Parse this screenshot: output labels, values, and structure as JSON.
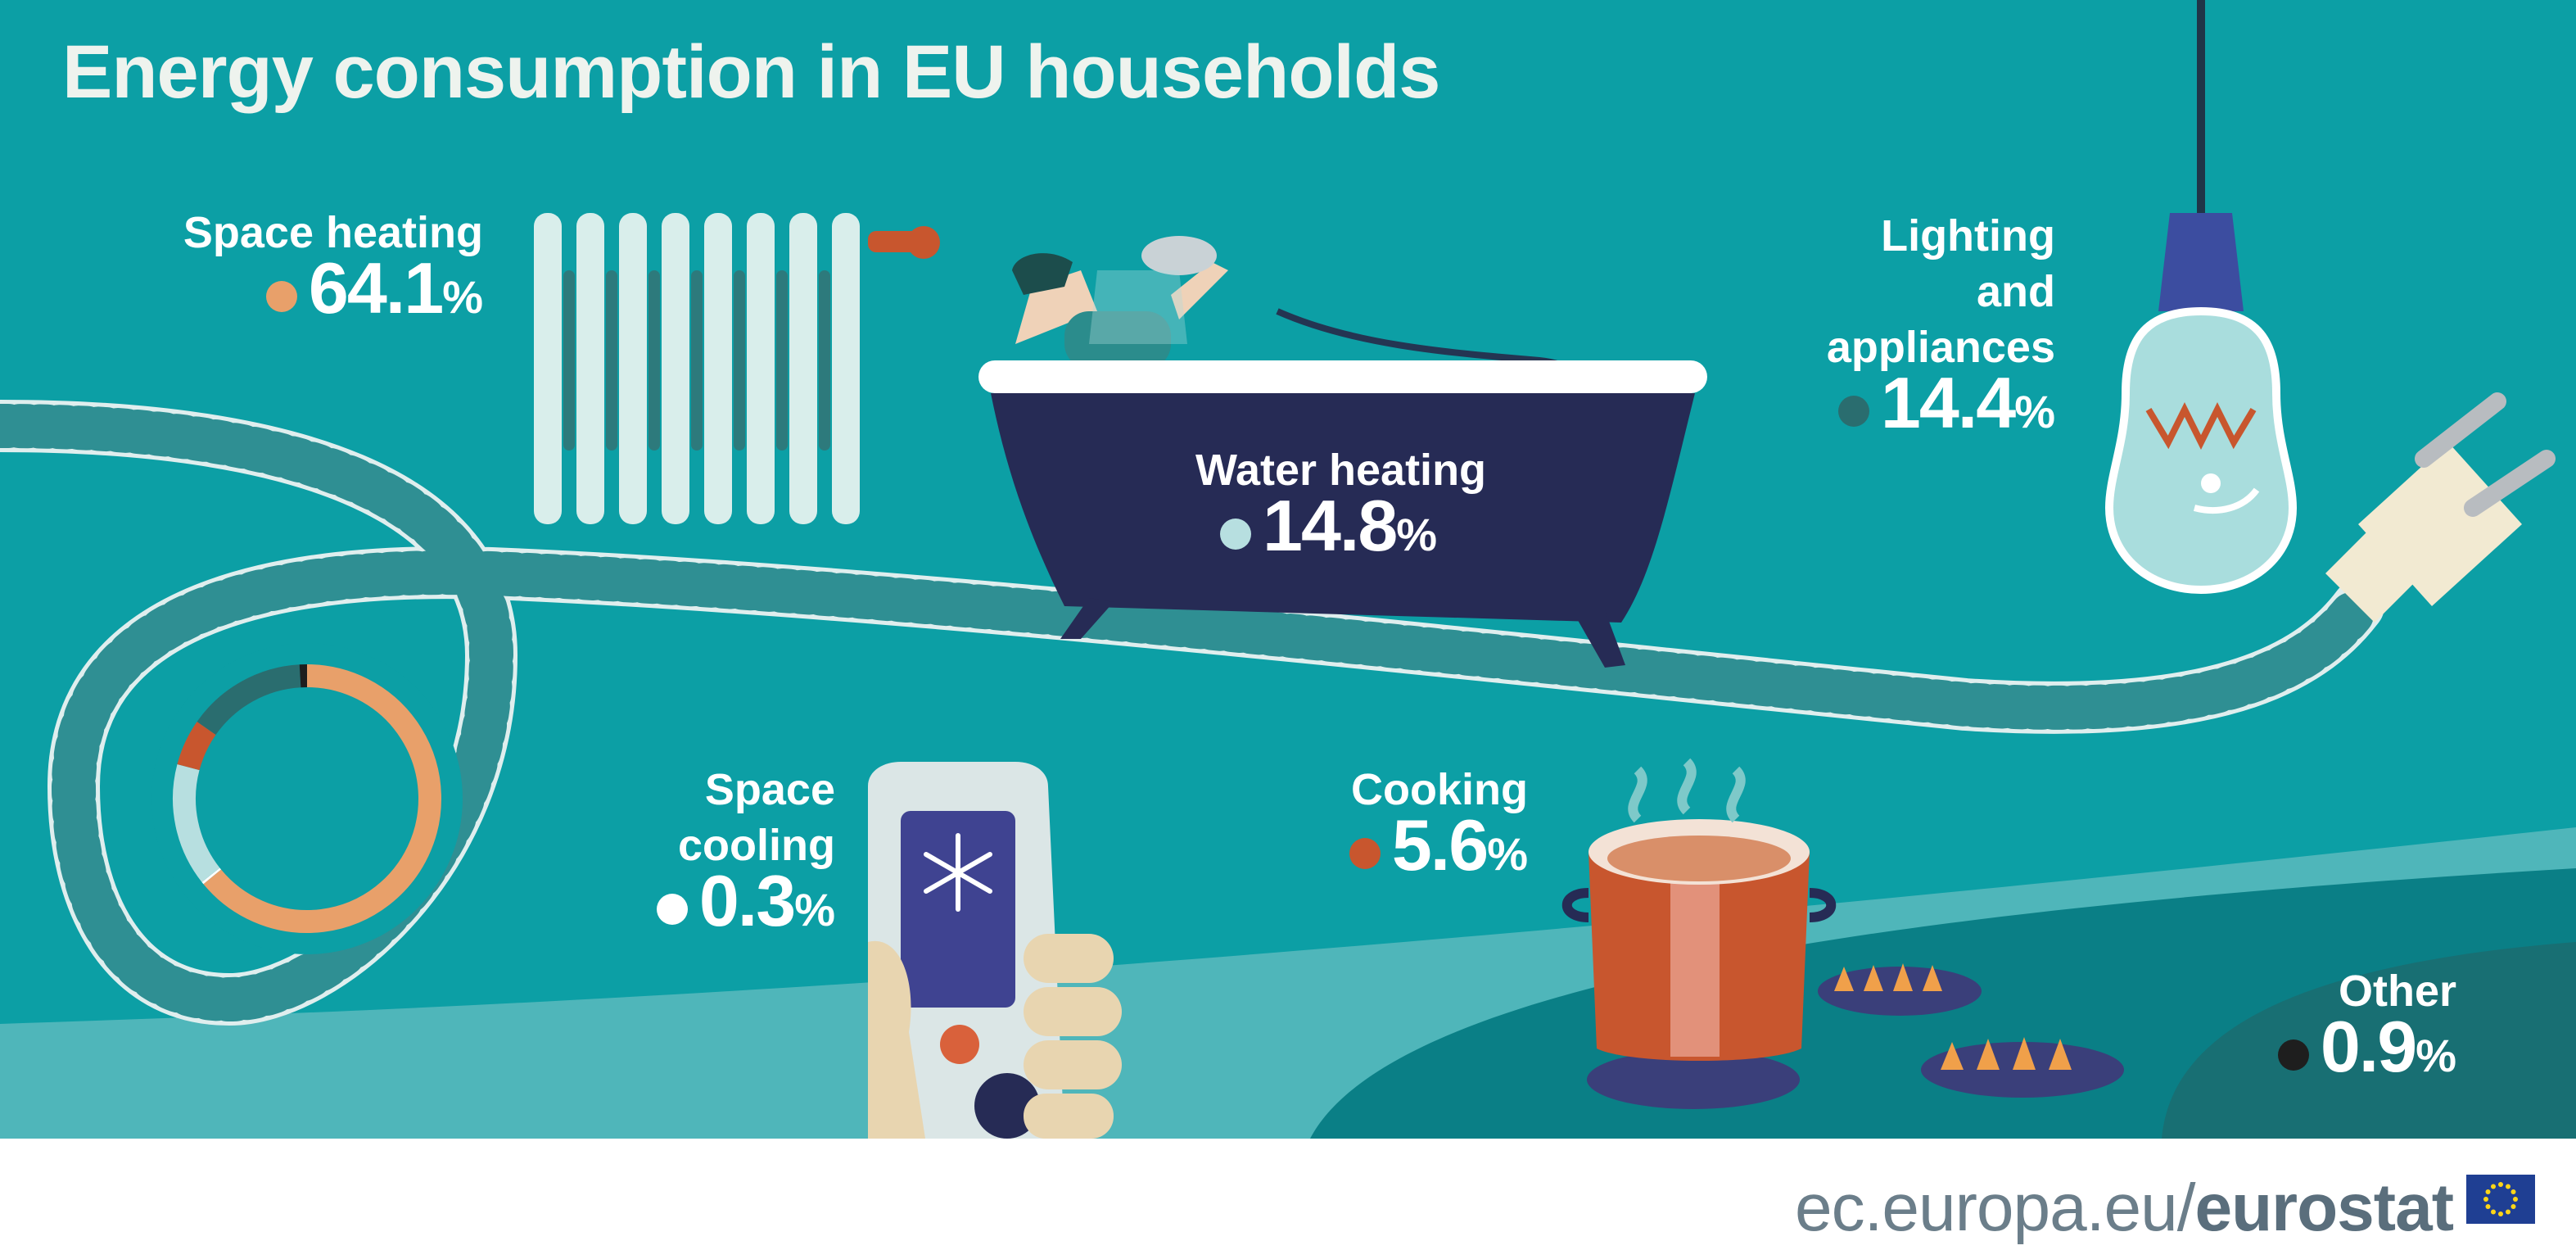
{
  "title": "Energy consumption in EU households",
  "colors": {
    "background": "#0c9fa5",
    "space_heating": "#e8a06a",
    "water_heating": "#b7dfe0",
    "lighting_and_appliances": "#2a6d6f",
    "cooking": "#c8562e",
    "space_cooling": "#ffffff",
    "other": "#1e1e1e"
  },
  "chart_data": {
    "type": "pie",
    "title": "Energy consumption in EU households",
    "unit": "%",
    "categories": [
      "Space heating",
      "Water heating",
      "Lighting and appliances",
      "Cooking",
      "Space cooling",
      "Other"
    ],
    "values": [
      64.1,
      14.8,
      14.4,
      5.6,
      0.3,
      0.9
    ],
    "labels": {
      "space_heating": {
        "line1": "Space heating",
        "value": "64.1",
        "unit": "%"
      },
      "water_heating": {
        "line1": "Water heating",
        "value": "14.8",
        "unit": "%"
      },
      "lighting": {
        "line1": "Lighting",
        "line2": "and",
        "line3": "appliances",
        "value": "14.4",
        "unit": "%"
      },
      "space_cooling": {
        "line1": "Space",
        "line2": "cooling",
        "value": "0.3",
        "unit": "%"
      },
      "cooking": {
        "line1": "Cooking",
        "value": "5.6",
        "unit": "%"
      },
      "other": {
        "line1": "Other",
        "value": "0.9",
        "unit": "%"
      }
    }
  },
  "footer": {
    "site_prefix": "ec.europa.eu/",
    "site_brand": "eurostat"
  },
  "icons": [
    "radiator-icon",
    "bathtub-icon",
    "light-bulb-icon",
    "plug-icon",
    "cable-icon",
    "remote-control-icon",
    "cooking-pot-icon",
    "gas-burner-icon",
    "eu-flag-icon"
  ]
}
